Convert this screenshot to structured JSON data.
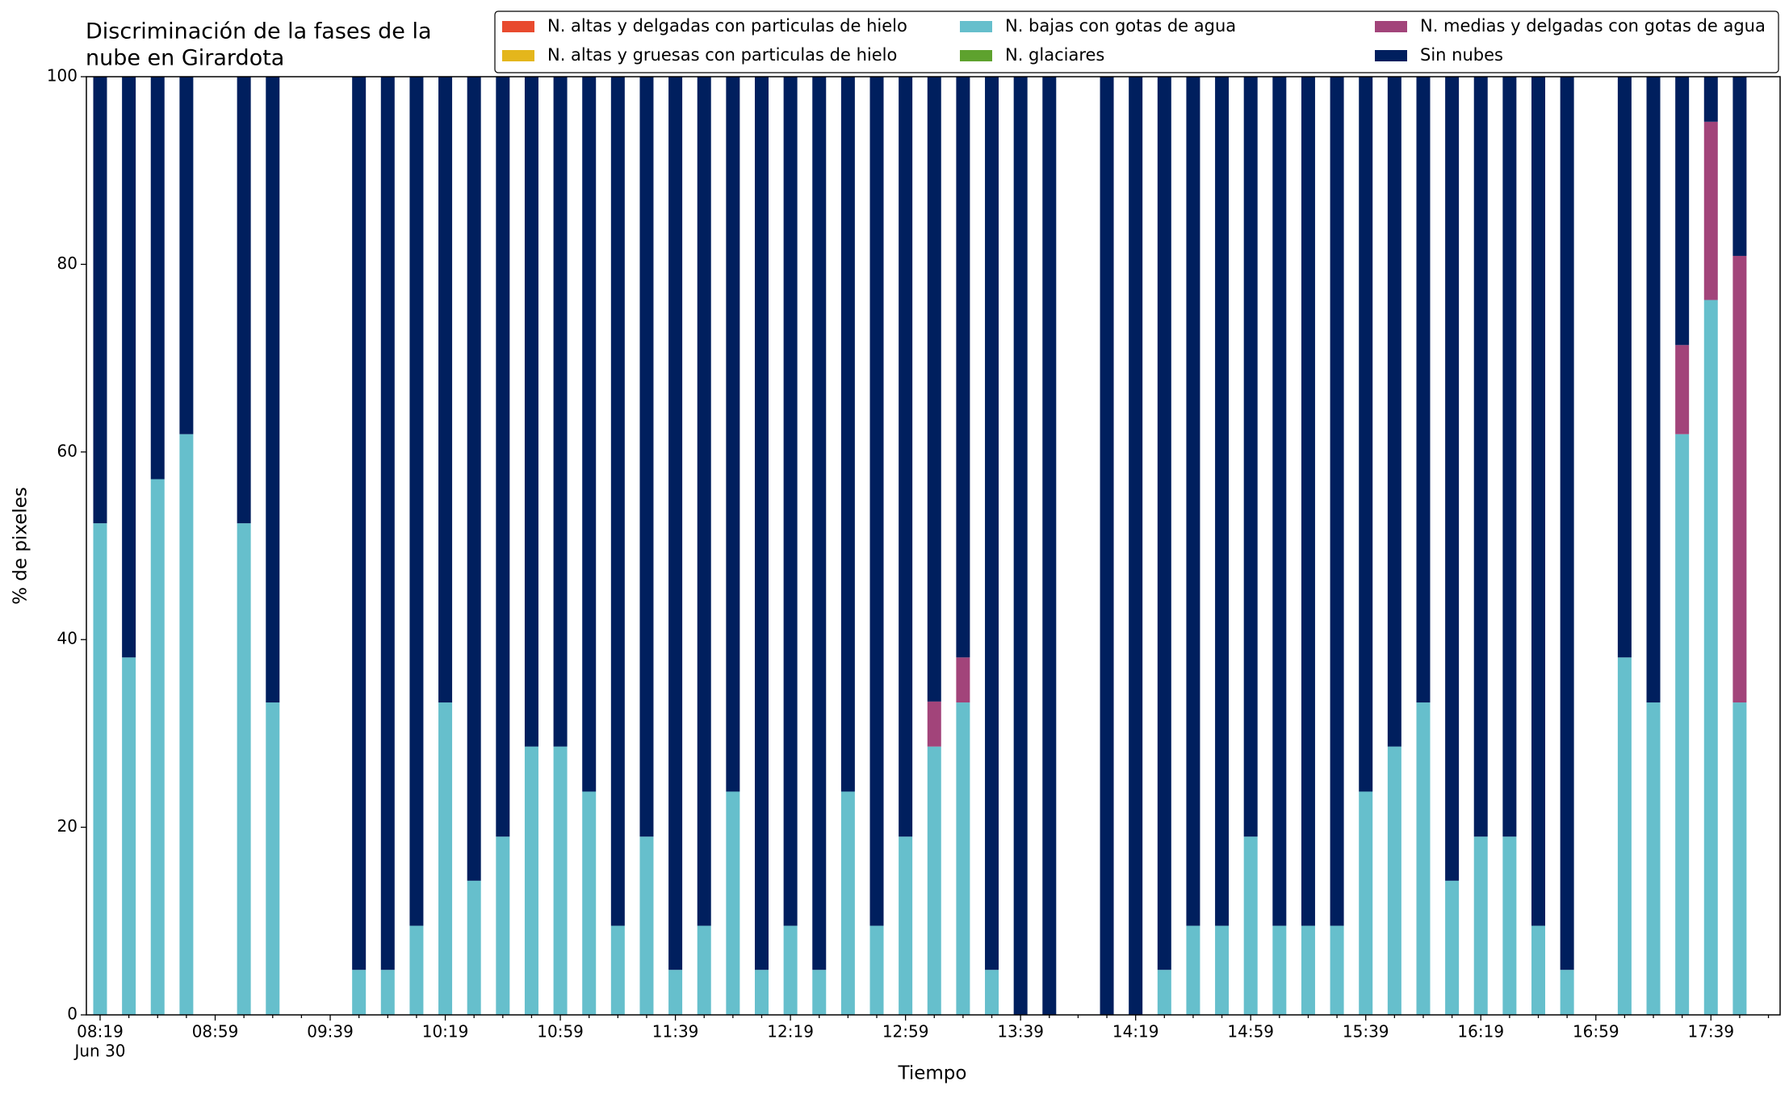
{
  "chart_data": {
    "type": "bar",
    "stacked": true,
    "title": [
      "Discriminación de la fases de la",
      "nube en Girardota"
    ],
    "xlabel": "Tiempo",
    "ylabel": "% de pixeles",
    "date_label": "Jun 30",
    "categories": [
      "08:19",
      null,
      null,
      null,
      "08:59",
      null,
      null,
      null,
      "09:39",
      null,
      null,
      null,
      "10:19",
      null,
      null,
      null,
      "10:59",
      null,
      null,
      null,
      "11:39",
      null,
      null,
      null,
      "12:19",
      null,
      null,
      null,
      "12:59",
      null,
      null,
      null,
      "13:39",
      null,
      null,
      null,
      "14:19",
      null,
      null,
      null,
      "14:59",
      null,
      null,
      null,
      "15:39",
      null,
      null,
      null,
      "16:19",
      null,
      null,
      null,
      "16:59",
      null,
      null,
      null,
      "17:39",
      null
    ],
    "ylim": [
      0,
      100
    ],
    "yticks": [
      0,
      20,
      40,
      60,
      80,
      100
    ],
    "grid": false,
    "series": [
      {
        "name": "N. altas y delgadas con particulas de hielo",
        "color": "#e84a2e",
        "values": [
          0,
          0,
          0,
          0,
          null,
          0,
          0,
          null,
          null,
          0,
          0,
          0,
          0,
          0,
          0,
          0,
          0,
          0,
          0,
          0,
          0,
          0,
          0,
          0,
          0,
          0,
          0,
          0,
          0,
          0,
          0,
          0,
          0,
          0,
          null,
          0,
          0,
          0,
          0,
          0,
          0,
          0,
          0,
          0,
          0,
          0,
          0,
          0,
          0,
          0,
          0,
          0,
          null,
          0,
          0,
          0,
          0,
          0
        ]
      },
      {
        "name": "N. altas y gruesas con particulas de hielo",
        "color": "#e4b61c",
        "values": [
          0,
          0,
          0,
          0,
          null,
          0,
          0,
          null,
          null,
          0,
          0,
          0,
          0,
          0,
          0,
          0,
          0,
          0,
          0,
          0,
          0,
          0,
          0,
          0,
          0,
          0,
          0,
          0,
          0,
          0,
          0,
          0,
          0,
          0,
          null,
          0,
          0,
          0,
          0,
          0,
          0,
          0,
          0,
          0,
          0,
          0,
          0,
          0,
          0,
          0,
          0,
          0,
          null,
          0,
          0,
          0,
          0,
          0
        ]
      },
      {
        "name": "N. bajas con gotas de agua",
        "color": "#66bfcc",
        "values": [
          52.4,
          38.1,
          57.1,
          61.9,
          null,
          52.4,
          33.3,
          null,
          null,
          4.8,
          4.8,
          9.5,
          33.3,
          14.3,
          19.0,
          28.6,
          28.6,
          23.8,
          9.5,
          19.0,
          4.8,
          9.5,
          23.8,
          4.8,
          9.5,
          4.8,
          23.8,
          9.5,
          19.0,
          28.6,
          33.3,
          4.8,
          0,
          0,
          null,
          0,
          0,
          4.8,
          9.5,
          9.5,
          19.0,
          9.5,
          9.5,
          9.5,
          23.8,
          28.6,
          33.3,
          14.3,
          19.0,
          19.0,
          9.5,
          4.8,
          null,
          38.1,
          33.3,
          61.9,
          76.2,
          33.3
        ]
      },
      {
        "name": "N. glaciares",
        "color": "#5ea22e",
        "values": [
          0,
          0,
          0,
          0,
          null,
          0,
          0,
          null,
          null,
          0,
          0,
          0,
          0,
          0,
          0,
          0,
          0,
          0,
          0,
          0,
          0,
          0,
          0,
          0,
          0,
          0,
          0,
          0,
          0,
          0,
          0,
          0,
          0,
          0,
          null,
          0,
          0,
          0,
          0,
          0,
          0,
          0,
          0,
          0,
          0,
          0,
          0,
          0,
          0,
          0,
          0,
          0,
          null,
          0,
          0,
          0,
          0,
          0
        ]
      },
      {
        "name": "N. medias y delgadas con gotas de agua",
        "color": "#a2447a",
        "values": [
          0,
          0,
          0,
          0,
          null,
          0,
          0,
          null,
          null,
          0,
          0,
          0,
          0,
          0,
          0,
          0,
          0,
          0,
          0,
          0,
          0,
          0,
          0,
          0,
          0,
          0,
          0,
          0,
          0,
          4.8,
          4.8,
          0,
          0,
          0,
          null,
          0,
          0,
          0,
          0,
          0,
          0,
          0,
          0,
          0,
          0,
          0,
          0,
          0,
          0,
          0,
          0,
          0,
          null,
          0,
          0,
          9.5,
          19.0,
          47.6
        ]
      },
      {
        "name": "Sin nubes",
        "color": "#001f5e",
        "values": [
          47.6,
          61.9,
          42.9,
          38.1,
          null,
          47.6,
          66.7,
          null,
          null,
          95.2,
          95.2,
          90.5,
          66.7,
          85.7,
          81.0,
          71.4,
          71.4,
          76.2,
          90.5,
          81.0,
          95.2,
          90.5,
          76.2,
          95.2,
          90.5,
          95.2,
          76.2,
          90.5,
          81.0,
          66.6,
          61.9,
          95.2,
          100,
          100,
          null,
          100,
          100,
          95.2,
          90.5,
          90.5,
          81.0,
          90.5,
          90.5,
          90.5,
          76.2,
          71.4,
          66.7,
          85.7,
          81.0,
          81.0,
          90.5,
          95.2,
          null,
          61.9,
          66.7,
          28.6,
          4.8,
          19.1
        ]
      }
    ]
  }
}
